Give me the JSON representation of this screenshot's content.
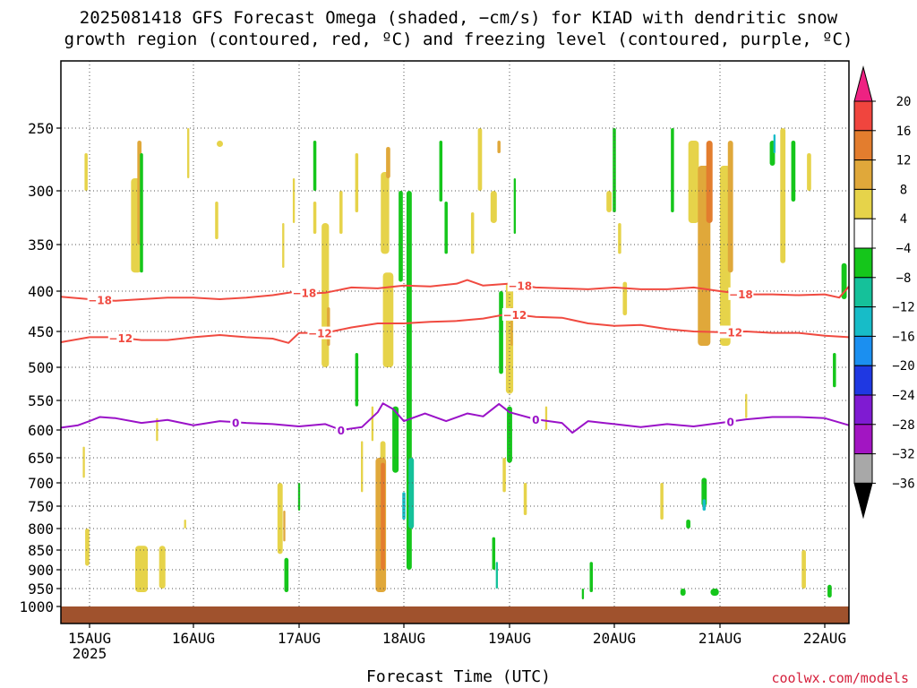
{
  "title": {
    "line1": "2025081418 GFS Forecast Omega (shaded, −cm/s) for KIAD with dendritic snow",
    "line2": "growth region (contoured, red, ºC) and freezing level (contoured, purple, ºC)"
  },
  "credit": "coolwx.com/models",
  "colors": {
    "dendritic_contour": "#f04a40",
    "freezing_contour": "#9a12c8",
    "ground": "#a0522d",
    "grid": "#555555"
  },
  "colorbar": {
    "labels": [
      "20",
      "16",
      "12",
      "8",
      "4",
      "−4",
      "−8",
      "−12",
      "−16",
      "−20",
      "−24",
      "−28",
      "−32",
      "−36"
    ],
    "bins": [
      {
        "color": "#ee2282"
      },
      {
        "color": "#f0453e"
      },
      {
        "color": "#e37d2e"
      },
      {
        "color": "#e0a83a"
      },
      {
        "color": "#e6d34a"
      },
      {
        "color": "#ffffff"
      },
      {
        "color": "#15c61b"
      },
      {
        "color": "#15c19a"
      },
      {
        "color": "#17bcc8"
      },
      {
        "color": "#1b8ff0"
      },
      {
        "color": "#1f38e2"
      },
      {
        "color": "#7f1bd2"
      },
      {
        "color": "#a215c2"
      },
      {
        "color": "#a8a8a8"
      },
      {
        "color": "#000000"
      }
    ]
  },
  "chart_data": {
    "type": "heatmap",
    "title": "2025081418 GFS Forecast Omega (shaded, −cm/s) for KIAD with dendritic snow growth region (contoured, red, ºC) and freezing level (contoured, purple, ºC)",
    "xlabel": "Forecast Time (UTC)",
    "ylabel": "",
    "x_ticks": [
      "15AUG\n2025",
      "16AUG",
      "17AUG",
      "18AUG",
      "19AUG",
      "20AUG",
      "21AUG",
      "22AUG"
    ],
    "x_tick_days": [
      15,
      16,
      17,
      18,
      19,
      20,
      21,
      22
    ],
    "xlim_days": [
      14.75,
      22.25
    ],
    "y_ticks": [
      250,
      300,
      350,
      400,
      450,
      500,
      550,
      600,
      650,
      700,
      750,
      800,
      850,
      900,
      950,
      1000
    ],
    "y_scale": "log-pressure (inverted, hPa)",
    "ylim": [
      1025,
      200
    ],
    "grid": true,
    "shading_bins": [
      20,
      16,
      12,
      8,
      4,
      -4,
      -8,
      -12,
      -16,
      -20,
      -24,
      -28,
      -32,
      -36
    ],
    "series": [
      {
        "name": "-18",
        "kind": "contour",
        "x": [
          14.75,
          15.0,
          15.25,
          15.5,
          15.75,
          16.0,
          16.25,
          16.5,
          16.75,
          17.0,
          17.1,
          17.25,
          17.5,
          17.75,
          18.0,
          18.25,
          18.5,
          18.6,
          18.75,
          19.0,
          19.25,
          19.5,
          19.75,
          20.0,
          20.25,
          20.5,
          20.75,
          21.0,
          21.25,
          21.5,
          21.75,
          22.0,
          22.15,
          22.25
        ],
        "y": [
          407,
          410,
          412,
          410,
          408,
          408,
          410,
          408,
          405,
          400,
          403,
          402,
          396,
          397,
          394,
          395,
          392,
          388,
          394,
          392,
          396,
          397,
          398,
          396,
          398,
          398,
          396,
          400,
          404,
          404,
          405,
          404,
          408,
          395
        ]
      },
      {
        "name": "-12",
        "kind": "contour",
        "x": [
          14.75,
          15.0,
          15.25,
          15.5,
          15.75,
          16.0,
          16.25,
          16.5,
          16.75,
          16.9,
          17.0,
          17.25,
          17.5,
          17.75,
          18.0,
          18.25,
          18.5,
          18.75,
          19.0,
          19.25,
          19.5,
          19.75,
          20.0,
          20.25,
          20.5,
          20.75,
          21.0,
          21.25,
          21.5,
          21.75,
          22.0,
          22.25
        ],
        "y": [
          465,
          458,
          458,
          462,
          462,
          458,
          455,
          458,
          460,
          466,
          452,
          452,
          445,
          440,
          440,
          438,
          437,
          434,
          428,
          432,
          433,
          440,
          443,
          442,
          447,
          450,
          451,
          450,
          452,
          452,
          456,
          458
        ]
      },
      {
        "name": "0",
        "kind": "contour",
        "x": [
          14.75,
          14.9,
          15.0,
          15.1,
          15.25,
          15.5,
          15.75,
          16.0,
          16.25,
          16.5,
          16.75,
          17.0,
          17.25,
          17.4,
          17.6,
          17.75,
          17.8,
          17.9,
          18.0,
          18.2,
          18.4,
          18.6,
          18.75,
          18.9,
          19.0,
          19.25,
          19.5,
          19.6,
          19.75,
          19.9,
          20.0,
          20.25,
          20.5,
          20.75,
          21.0,
          21.25,
          21.5,
          21.75,
          22.0,
          22.25
        ],
        "y": [
          596,
          592,
          585,
          578,
          580,
          588,
          583,
          592,
          585,
          588,
          590,
          594,
          590,
          600,
          595,
          570,
          555,
          565,
          585,
          572,
          585,
          572,
          577,
          556,
          570,
          582,
          588,
          605,
          585,
          588,
          590,
          595,
          590,
          594,
          588,
          582,
          578,
          578,
          580,
          592
        ]
      }
    ]
  }
}
